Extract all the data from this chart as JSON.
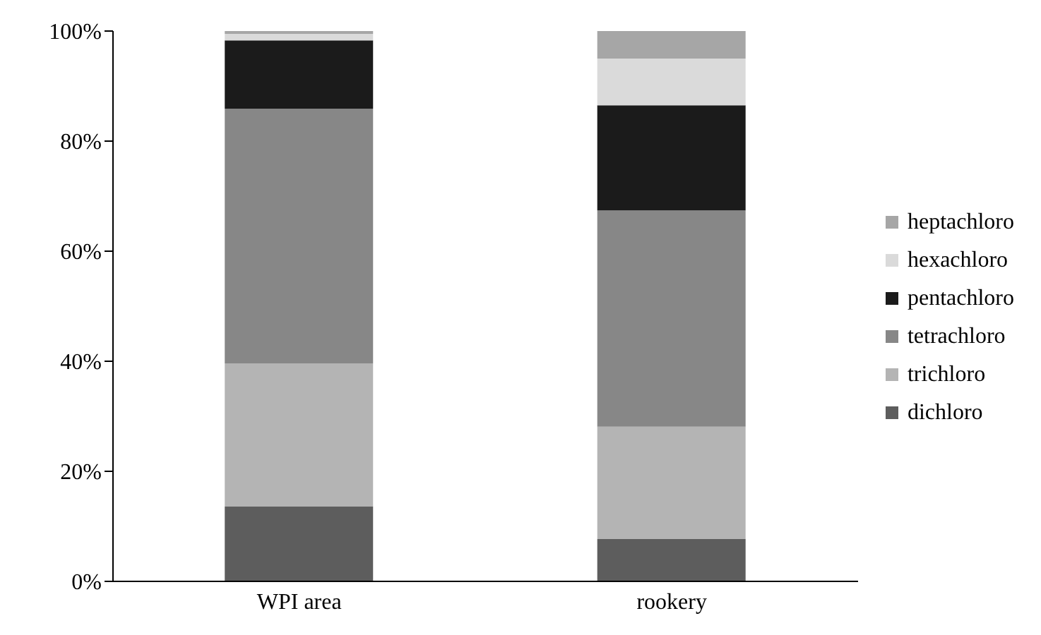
{
  "chart_data": {
    "type": "bar",
    "stacked": true,
    "categories": [
      "WPI area",
      "rookery"
    ],
    "series": [
      {
        "name": "dichloro",
        "color": "#5d5d5d",
        "values": [
          13.6,
          7.7
        ]
      },
      {
        "name": "trichloro",
        "color": "#b4b4b4",
        "values": [
          26.0,
          20.4
        ]
      },
      {
        "name": "tetrachloro",
        "color": "#878787",
        "values": [
          46.3,
          39.3
        ]
      },
      {
        "name": "pentachloro",
        "color": "#1b1b1b",
        "values": [
          12.4,
          19.1
        ]
      },
      {
        "name": "hexachloro",
        "color": "#dadada",
        "values": [
          1.2,
          8.5
        ]
      },
      {
        "name": "heptachloro",
        "color": "#a6a6a6",
        "values": [
          0.5,
          5.0
        ]
      }
    ],
    "ylim": [
      0,
      100
    ],
    "yticks": [
      {
        "value": 0,
        "label": "0%"
      },
      {
        "value": 20,
        "label": "20%"
      },
      {
        "value": 40,
        "label": "40%"
      },
      {
        "value": 60,
        "label": "60%"
      },
      {
        "value": 80,
        "label": "80%"
      },
      {
        "value": 100,
        "label": "100%"
      }
    ],
    "grid": false,
    "legend": "right"
  }
}
